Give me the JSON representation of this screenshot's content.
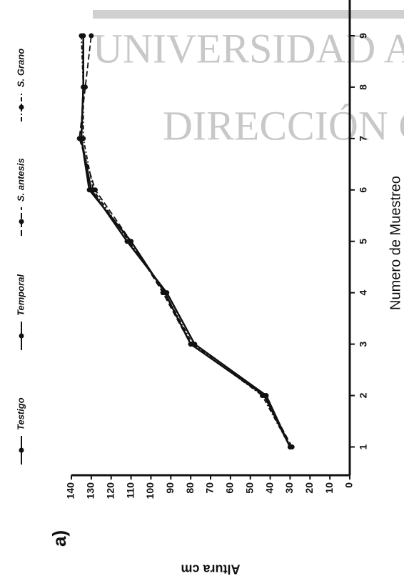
{
  "chart_data": {
    "type": "line",
    "title": "a)",
    "watermark": [
      "UNIVERSIDAD A",
      "DIRECCIÓN G"
    ],
    "x_label": "Numero de Muestreo",
    "y_label": "Altura cm",
    "x": [
      1,
      2,
      3,
      4,
      5,
      6,
      7,
      8,
      9
    ],
    "xlim": [
      0.45,
      9.5
    ],
    "xticks": [
      1,
      2,
      3,
      4,
      5,
      6,
      7,
      8,
      9
    ],
    "ylim": [
      0,
      140
    ],
    "yticks": [
      0,
      10,
      20,
      30,
      40,
      50,
      60,
      70,
      80,
      90,
      100,
      110,
      120,
      130,
      140
    ],
    "series": [
      {
        "name": "Testigo",
        "color": "#111111",
        "style": "solid",
        "values": [
          30,
          43,
          80,
          93,
          110,
          131,
          135,
          134,
          134
        ]
      },
      {
        "name": "Temporal",
        "color": "#111111",
        "style": "solid",
        "values": [
          30,
          42,
          78,
          92,
          112,
          130,
          135,
          134,
          134
        ]
      },
      {
        "name": "S. antesis",
        "color": "#111111",
        "style": "dashed",
        "values": [
          29,
          43,
          80,
          94,
          110,
          128,
          136,
          133,
          130
        ]
      },
      {
        "name": "S. Grano",
        "color": "#111111",
        "style": "dashdot",
        "values": [
          30,
          44,
          79,
          93,
          111,
          129,
          134,
          134,
          135
        ]
      }
    ]
  }
}
